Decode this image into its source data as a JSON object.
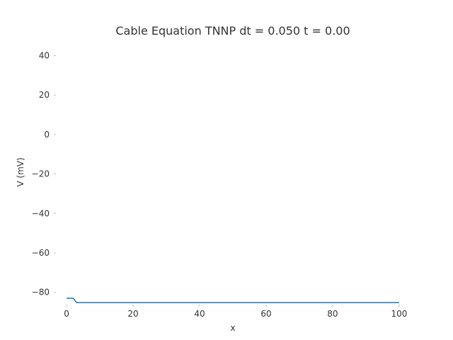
{
  "chart_data": {
    "type": "line",
    "title": "Cable Equation TNNP dt = 0.050 t = 0.00",
    "xlabel": "x",
    "ylabel": "V (mV)",
    "xlim": [
      -3,
      103
    ],
    "ylim": [
      -85.5,
      47
    ],
    "xticks": [
      0,
      20,
      40,
      60,
      80,
      100
    ],
    "yticks": [
      40,
      20,
      0,
      -20,
      -40,
      -60,
      -80
    ],
    "xtick_labels": [
      "0",
      "20",
      "40",
      "60",
      "80",
      "100"
    ],
    "ytick_labels": [
      "40",
      "20",
      "0",
      "−20",
      "−40",
      "−60",
      "−80"
    ],
    "grid": false,
    "series": [
      {
        "color": "#1f77b4",
        "x": [
          0,
          1,
          2,
          3,
          4,
          100
        ],
        "y": [
          -83,
          -83,
          -83,
          -85.2,
          -85.2,
          -85.2
        ]
      }
    ]
  }
}
